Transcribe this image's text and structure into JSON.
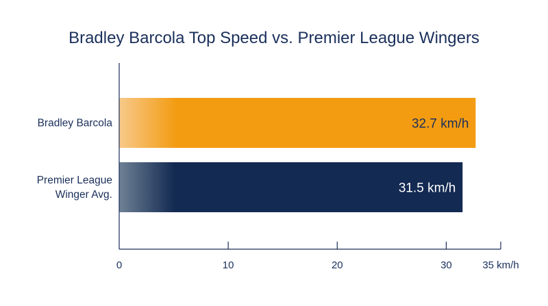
{
  "chart_data": {
    "type": "bar",
    "orientation": "horizontal",
    "title": "Bradley Barcola Top Speed vs. Premier League Wingers",
    "categories": [
      [
        "Bradley Barcola"
      ],
      [
        "Premier League",
        "Winger Avg."
      ]
    ],
    "values": [
      32.7,
      31.5
    ],
    "value_labels": [
      "32.7 km/h",
      "31.5 km/h"
    ],
    "bar_colors": [
      "#f39c12",
      "#132a52"
    ],
    "bar_fade_colors": [
      "#f7c98a",
      "#6f8196"
    ],
    "value_label_colors": [
      "#1a2f5a",
      "#ffffff"
    ],
    "xlim": [
      0,
      35
    ],
    "xticks": [
      0,
      10,
      20,
      30,
      35
    ],
    "xtick_labels": [
      "0",
      "10",
      "20",
      "30",
      "35 km/h"
    ],
    "grid": false,
    "legend": "none"
  }
}
